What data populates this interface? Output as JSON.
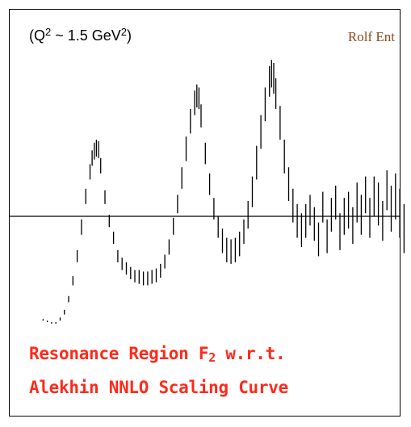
{
  "annotation": {
    "q2_open": "(Q",
    "q2_exp": "2",
    "q2_mid": " ~ 1.5 GeV",
    "q2_unit_exp": "2",
    "q2_close": ")"
  },
  "author": "Rolf Ent",
  "caption": {
    "line1_before": "Resonance Region F",
    "line1_sub": "2",
    "line1_after": " w.r.t.",
    "line2": "Alekhin NNLO Scaling Curve"
  },
  "colors": {
    "caption": "#ff2a1a",
    "author": "#8a4a1e",
    "marks": "#000000"
  },
  "chart_data": {
    "type": "scatter",
    "title": "",
    "xlabel": "",
    "ylabel": "",
    "grid": false,
    "reference_line_y": 0,
    "ylim": [
      -1,
      1
    ],
    "note": "vertical error bars; each point given as [x, y_low, y_high]",
    "points": [
      [
        0.02,
        -0.68,
        -0.67
      ],
      [
        0.04,
        -0.69,
        -0.68
      ],
      [
        0.06,
        -0.7,
        -0.69
      ],
      [
        0.08,
        -0.7,
        -0.69
      ],
      [
        0.1,
        -0.68,
        -0.66
      ],
      [
        0.12,
        -0.64,
        -0.61
      ],
      [
        0.14,
        -0.56,
        -0.52
      ],
      [
        0.16,
        -0.45,
        -0.39
      ],
      [
        0.18,
        -0.3,
        -0.22
      ],
      [
        0.2,
        -0.12,
        -0.02
      ],
      [
        0.22,
        0.08,
        0.18
      ],
      [
        0.24,
        0.24,
        0.34
      ],
      [
        0.25,
        0.33,
        0.43
      ],
      [
        0.26,
        0.37,
        0.48
      ],
      [
        0.27,
        0.39,
        0.5
      ],
      [
        0.28,
        0.38,
        0.49
      ],
      [
        0.29,
        0.28,
        0.38
      ],
      [
        0.31,
        0.08,
        0.17
      ],
      [
        0.33,
        -0.07,
        0.01
      ],
      [
        0.35,
        -0.18,
        -0.1
      ],
      [
        0.37,
        -0.3,
        -0.22
      ],
      [
        0.39,
        -0.35,
        -0.27
      ],
      [
        0.41,
        -0.38,
        -0.3
      ],
      [
        0.43,
        -0.41,
        -0.33
      ],
      [
        0.45,
        -0.43,
        -0.35
      ],
      [
        0.47,
        -0.44,
        -0.35
      ],
      [
        0.49,
        -0.45,
        -0.36
      ],
      [
        0.51,
        -0.45,
        -0.36
      ],
      [
        0.53,
        -0.44,
        -0.35
      ],
      [
        0.55,
        -0.43,
        -0.34
      ],
      [
        0.57,
        -0.4,
        -0.31
      ],
      [
        0.59,
        -0.34,
        -0.25
      ],
      [
        0.61,
        -0.25,
        -0.15
      ],
      [
        0.63,
        -0.12,
        -0.01
      ],
      [
        0.65,
        0.02,
        0.14
      ],
      [
        0.67,
        0.18,
        0.32
      ],
      [
        0.69,
        0.36,
        0.52
      ],
      [
        0.71,
        0.54,
        0.7
      ],
      [
        0.73,
        0.66,
        0.82
      ],
      [
        0.74,
        0.71,
        0.86
      ],
      [
        0.75,
        0.7,
        0.84
      ],
      [
        0.76,
        0.58,
        0.73
      ],
      [
        0.78,
        0.34,
        0.48
      ],
      [
        0.8,
        0.14,
        0.28
      ],
      [
        0.82,
        -0.02,
        0.12
      ],
      [
        0.84,
        -0.14,
        0.0
      ],
      [
        0.86,
        -0.24,
        -0.08
      ],
      [
        0.88,
        -0.3,
        -0.14
      ],
      [
        0.9,
        -0.31,
        -0.15
      ],
      [
        0.92,
        -0.3,
        -0.14
      ],
      [
        0.94,
        -0.26,
        -0.1
      ],
      [
        0.96,
        -0.18,
        -0.02
      ],
      [
        0.98,
        -0.08,
        0.1
      ],
      [
        1.0,
        0.06,
        0.26
      ],
      [
        1.02,
        0.24,
        0.46
      ],
      [
        1.04,
        0.44,
        0.66
      ],
      [
        1.06,
        0.62,
        0.84
      ],
      [
        1.08,
        0.78,
        0.98
      ],
      [
        1.09,
        0.84,
        1.02
      ],
      [
        1.1,
        0.8,
        1.0
      ],
      [
        1.11,
        0.7,
        0.9
      ],
      [
        1.13,
        0.5,
        0.72
      ],
      [
        1.15,
        0.28,
        0.5
      ],
      [
        1.17,
        0.1,
        0.32
      ],
      [
        1.19,
        -0.04,
        0.18
      ],
      [
        1.21,
        -0.14,
        0.08
      ],
      [
        1.23,
        -0.2,
        0.02
      ],
      [
        1.25,
        -0.14,
        0.08
      ],
      [
        1.27,
        -0.06,
        0.14
      ],
      [
        1.29,
        -0.16,
        0.06
      ],
      [
        1.31,
        -0.26,
        -0.04
      ],
      [
        1.33,
        -0.04,
        0.16
      ],
      [
        1.35,
        -0.24,
        -0.02
      ],
      [
        1.37,
        -0.1,
        0.12
      ],
      [
        1.39,
        -0.02,
        0.2
      ],
      [
        1.41,
        -0.22,
        0.02
      ],
      [
        1.43,
        -0.12,
        0.12
      ],
      [
        1.45,
        -0.08,
        0.16
      ],
      [
        1.47,
        -0.18,
        0.06
      ],
      [
        1.49,
        -0.04,
        0.22
      ],
      [
        1.51,
        -0.12,
        0.14
      ],
      [
        1.53,
        0.02,
        0.26
      ],
      [
        1.55,
        -0.14,
        0.12
      ],
      [
        1.57,
        0.0,
        0.26
      ],
      [
        1.59,
        -0.06,
        0.22
      ],
      [
        1.61,
        -0.16,
        0.1
      ],
      [
        1.63,
        0.04,
        0.3
      ],
      [
        1.65,
        -0.1,
        0.2
      ],
      [
        1.67,
        -0.02,
        0.28
      ],
      [
        1.69,
        -0.14,
        0.18
      ],
      [
        1.71,
        -0.24,
        0.08
      ]
    ]
  }
}
